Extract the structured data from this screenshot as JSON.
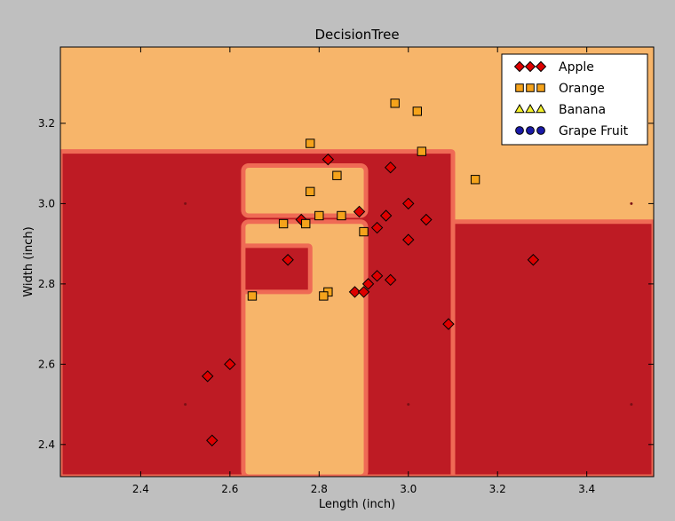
{
  "chart_data": {
    "type": "scatter",
    "title": "DecisionTree",
    "xlabel": "Length (inch)",
    "ylabel": "Width (inch)",
    "xlim": [
      2.22,
      3.55
    ],
    "ylim": [
      2.32,
      3.39
    ],
    "x_ticks": [
      2.4,
      2.6,
      2.8,
      3.0,
      3.2,
      3.4
    ],
    "y_ticks": [
      2.4,
      2.6,
      2.8,
      3.0,
      3.2
    ],
    "x_tick_labels": [
      "2.4",
      "2.6",
      "2.8",
      "3.0",
      "3.2",
      "3.4"
    ],
    "y_tick_labels": [
      "2.4",
      "2.6",
      "2.8",
      "3.0",
      "3.2"
    ],
    "grid": false,
    "legend_position": "top-right",
    "colors": {
      "apple_region": "#be1b24",
      "orange_region": "#f7b56a",
      "boundary": "#ef6a55",
      "apple_marker": "#dd0000",
      "orange_marker": "#f5a31b",
      "banana_marker": "#f2ef2a",
      "grape_marker": "#1a1aa8"
    },
    "regions": [
      {
        "class": "Orange",
        "x": [
          2.22,
          3.55
        ],
        "y": [
          2.32,
          3.39
        ]
      },
      {
        "class": "Apple",
        "x": [
          2.22,
          3.1
        ],
        "y": [
          2.32,
          3.13
        ]
      },
      {
        "class": "Apple",
        "x": [
          3.1,
          3.55
        ],
        "y": [
          2.32,
          2.955
        ]
      },
      {
        "class": "Orange",
        "x": [
          2.63,
          2.905
        ],
        "y": [
          2.32,
          2.955
        ]
      },
      {
        "class": "Orange",
        "x": [
          2.63,
          2.905
        ],
        "y": [
          2.97,
          3.095
        ]
      },
      {
        "class": "Apple",
        "x": [
          2.63,
          2.78
        ],
        "y": [
          2.78,
          2.895
        ]
      }
    ],
    "series": [
      {
        "name": "Apple",
        "marker": "diamond",
        "legend_label": "Apple",
        "x": [
          2.82,
          2.96,
          2.76,
          2.89,
          2.95,
          3.0,
          3.04,
          2.93,
          3.0,
          2.73,
          2.88,
          2.91,
          2.93,
          2.96,
          2.9,
          3.09,
          3.28,
          2.6,
          2.55,
          2.56
        ],
        "y": [
          3.11,
          3.09,
          2.96,
          2.98,
          2.97,
          3.0,
          2.96,
          2.94,
          2.91,
          2.86,
          2.78,
          2.8,
          2.82,
          2.81,
          2.78,
          2.7,
          2.86,
          2.6,
          2.57,
          2.41
        ]
      },
      {
        "name": "Orange",
        "marker": "square",
        "legend_label": "Orange",
        "x": [
          2.97,
          3.02,
          3.03,
          2.78,
          2.84,
          3.15,
          2.78,
          2.72,
          2.77,
          2.8,
          2.85,
          2.9,
          2.82,
          2.81,
          2.65
        ],
        "y": [
          3.25,
          3.23,
          3.13,
          3.15,
          3.07,
          3.06,
          3.03,
          2.95,
          2.95,
          2.97,
          2.97,
          2.93,
          2.78,
          2.77,
          2.77
        ]
      },
      {
        "name": "Banana",
        "marker": "triangle",
        "legend_label": "Banana",
        "x": [],
        "y": []
      },
      {
        "name": "Grape Fruit",
        "marker": "circle",
        "legend_label": "Grape Fruit",
        "x": [],
        "y": []
      }
    ]
  }
}
